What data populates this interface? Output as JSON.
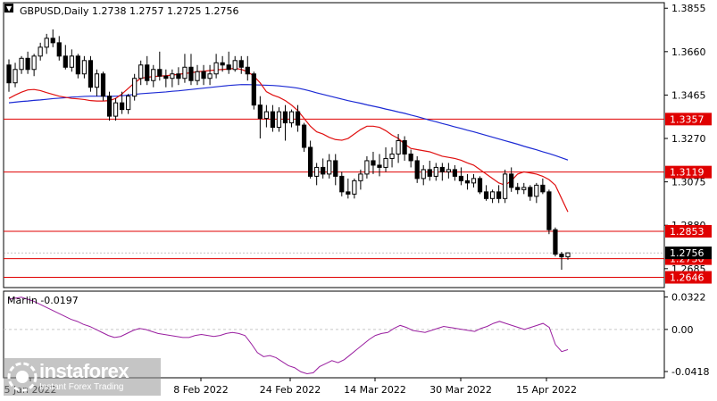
{
  "instrument_label": "GBPUSD,Daily  1.2738 1.2757 1.2725 1.2756",
  "indicator_label": "Marlin -0.0197",
  "logo": {
    "brand": "instaforex",
    "tagline": "Instant Forex Trading"
  },
  "colors": {
    "background": "#ffffff",
    "axis": "#000000",
    "grid": "#c8c8c8",
    "candle": "#000000",
    "ma_fast": "#e01010",
    "ma_slow": "#1c2ad4",
    "level": "#e00000",
    "level_label_bg": "#e00000",
    "price_label_bg": "#000000",
    "oscillator": "#9a1fa0"
  },
  "chart_data": [
    {
      "type": "candlestick",
      "title": "GBPUSD,Daily",
      "ylim": [
        1.26,
        1.388
      ],
      "y_ticks": [
        "1.3855",
        "1.3660",
        "1.3465",
        "1.3270",
        "1.3075",
        "1.2880",
        "1.2685"
      ],
      "x_ticks": [
        "5 Jan 2022",
        "8 Feb 2022",
        "24 Feb 2022",
        "14 Mar 2022",
        "30 Mar 2022",
        "15 Apr 2022"
      ],
      "hidden_tick_fragment": "5 J",
      "current_price_label": "1.2756",
      "levels": [
        {
          "value": 1.3357,
          "label": "1.3357"
        },
        {
          "value": 1.3119,
          "label": "1.3119"
        },
        {
          "value": 1.2853,
          "label": "1.2853"
        },
        {
          "value": 1.273,
          "label": "1.2730"
        },
        {
          "value": 1.2646,
          "label": "1.2646"
        }
      ],
      "candles": [
        [
          1.36,
          1.3625,
          1.348,
          1.352
        ],
        [
          1.352,
          1.361,
          1.35,
          1.358
        ],
        [
          1.358,
          1.364,
          1.356,
          1.363
        ],
        [
          1.363,
          1.366,
          1.356,
          1.358
        ],
        [
          1.358,
          1.365,
          1.355,
          1.364
        ],
        [
          1.364,
          1.37,
          1.362,
          1.368
        ],
        [
          1.368,
          1.374,
          1.365,
          1.372
        ],
        [
          1.372,
          1.376,
          1.368,
          1.37
        ],
        [
          1.37,
          1.373,
          1.362,
          1.364
        ],
        [
          1.364,
          1.369,
          1.358,
          1.359
        ],
        [
          1.359,
          1.367,
          1.357,
          1.364
        ],
        [
          1.364,
          1.365,
          1.354,
          1.356
        ],
        [
          1.356,
          1.364,
          1.354,
          1.362
        ],
        [
          1.362,
          1.364,
          1.348,
          1.35
        ],
        [
          1.35,
          1.358,
          1.346,
          1.356
        ],
        [
          1.356,
          1.357,
          1.344,
          1.346
        ],
        [
          1.346,
          1.348,
          1.335,
          1.337
        ],
        [
          1.337,
          1.345,
          1.335,
          1.343
        ],
        [
          1.343,
          1.348,
          1.338,
          1.34
        ],
        [
          1.34,
          1.347,
          1.338,
          1.346
        ],
        [
          1.346,
          1.356,
          1.344,
          1.354
        ],
        [
          1.354,
          1.362,
          1.351,
          1.36
        ],
        [
          1.36,
          1.364,
          1.351,
          1.353
        ],
        [
          1.353,
          1.36,
          1.35,
          1.358
        ],
        [
          1.358,
          1.366,
          1.353,
          1.355
        ],
        [
          1.355,
          1.358,
          1.35,
          1.354
        ],
        [
          1.354,
          1.358,
          1.35,
          1.356
        ],
        [
          1.356,
          1.359,
          1.351,
          1.354
        ],
        [
          1.354,
          1.365,
          1.352,
          1.359
        ],
        [
          1.359,
          1.365,
          1.351,
          1.353
        ],
        [
          1.353,
          1.36,
          1.351,
          1.357
        ],
        [
          1.357,
          1.36,
          1.351,
          1.354
        ],
        [
          1.354,
          1.36,
          1.351,
          1.356
        ],
        [
          1.356,
          1.365,
          1.354,
          1.361
        ],
        [
          1.361,
          1.364,
          1.357,
          1.36
        ],
        [
          1.36,
          1.366,
          1.356,
          1.358
        ],
        [
          1.358,
          1.364,
          1.357,
          1.362
        ],
        [
          1.362,
          1.364,
          1.356,
          1.359
        ],
        [
          1.359,
          1.364,
          1.353,
          1.356
        ],
        [
          1.356,
          1.357,
          1.34,
          1.342
        ],
        [
          1.342,
          1.346,
          1.327,
          1.336
        ],
        [
          1.336,
          1.342,
          1.332,
          1.339
        ],
        [
          1.339,
          1.342,
          1.33,
          1.332
        ],
        [
          1.332,
          1.341,
          1.33,
          1.339
        ],
        [
          1.339,
          1.342,
          1.326,
          1.334
        ],
        [
          1.334,
          1.34,
          1.332,
          1.339
        ],
        [
          1.339,
          1.342,
          1.33,
          1.333
        ],
        [
          1.333,
          1.334,
          1.321,
          1.323
        ],
        [
          1.323,
          1.326,
          1.309,
          1.31
        ],
        [
          1.31,
          1.316,
          1.306,
          1.314
        ],
        [
          1.314,
          1.318,
          1.309,
          1.311
        ],
        [
          1.311,
          1.32,
          1.309,
          1.317
        ],
        [
          1.317,
          1.32,
          1.306,
          1.31
        ],
        [
          1.31,
          1.312,
          1.301,
          1.303
        ],
        [
          1.303,
          1.309,
          1.3,
          1.302
        ],
        [
          1.302,
          1.309,
          1.3,
          1.308
        ],
        [
          1.308,
          1.313,
          1.304,
          1.311
        ],
        [
          1.311,
          1.319,
          1.309,
          1.317
        ],
        [
          1.317,
          1.321,
          1.311,
          1.315
        ],
        [
          1.315,
          1.32,
          1.31,
          1.314
        ],
        [
          1.314,
          1.323,
          1.312,
          1.318
        ],
        [
          1.318,
          1.323,
          1.314,
          1.32
        ],
        [
          1.32,
          1.329,
          1.316,
          1.326
        ],
        [
          1.326,
          1.328,
          1.317,
          1.32
        ],
        [
          1.32,
          1.322,
          1.314,
          1.317
        ],
        [
          1.317,
          1.319,
          1.307,
          1.309
        ],
        [
          1.309,
          1.315,
          1.306,
          1.313
        ],
        [
          1.313,
          1.317,
          1.308,
          1.31
        ],
        [
          1.31,
          1.316,
          1.308,
          1.314
        ],
        [
          1.314,
          1.316,
          1.308,
          1.312
        ],
        [
          1.312,
          1.316,
          1.309,
          1.313
        ],
        [
          1.313,
          1.315,
          1.308,
          1.31
        ],
        [
          1.31,
          1.314,
          1.306,
          1.308
        ],
        [
          1.308,
          1.311,
          1.304,
          1.307
        ],
        [
          1.307,
          1.311,
          1.305,
          1.309
        ],
        [
          1.309,
          1.31,
          1.302,
          1.303
        ],
        [
          1.303,
          1.306,
          1.299,
          1.3
        ],
        [
          1.3,
          1.304,
          1.298,
          1.303
        ],
        [
          1.303,
          1.306,
          1.298,
          1.3
        ],
        [
          1.3,
          1.313,
          1.298,
          1.311
        ],
        [
          1.311,
          1.314,
          1.303,
          1.305
        ],
        [
          1.305,
          1.307,
          1.302,
          1.304
        ],
        [
          1.304,
          1.307,
          1.302,
          1.305
        ],
        [
          1.305,
          1.306,
          1.299,
          1.301
        ],
        [
          1.301,
          1.307,
          1.298,
          1.306
        ],
        [
          1.306,
          1.309,
          1.302,
          1.303
        ],
        [
          1.303,
          1.304,
          1.284,
          1.286
        ],
        [
          1.286,
          1.287,
          1.274,
          1.275
        ],
        [
          1.275,
          1.276,
          1.268,
          1.2738
        ],
        [
          1.2738,
          1.2757,
          1.2725,
          1.2756
        ]
      ],
      "ma_fast": [
        1.345,
        1.3465,
        1.3478,
        1.3488,
        1.349,
        1.3485,
        1.3476,
        1.3468,
        1.346,
        1.3455,
        1.345,
        1.3448,
        1.3445,
        1.344,
        1.3438,
        1.3438,
        1.344,
        1.345,
        1.347,
        1.3495,
        1.352,
        1.354,
        1.3545,
        1.3548,
        1.355,
        1.3552,
        1.3555,
        1.3558,
        1.3562,
        1.3565,
        1.357,
        1.3572,
        1.3575,
        1.3578,
        1.358,
        1.3582,
        1.3585,
        1.358,
        1.357,
        1.355,
        1.352,
        1.348,
        1.3465,
        1.3455,
        1.344,
        1.342,
        1.3395,
        1.336,
        1.3325,
        1.33,
        1.329,
        1.3275,
        1.3265,
        1.3262,
        1.327,
        1.329,
        1.331,
        1.3325,
        1.3325,
        1.332,
        1.3305,
        1.3285,
        1.327,
        1.3245,
        1.3225,
        1.322,
        1.3215,
        1.321,
        1.32,
        1.319,
        1.3185,
        1.318,
        1.3172,
        1.316,
        1.315,
        1.313,
        1.311,
        1.309,
        1.307,
        1.306,
        1.308,
        1.311,
        1.312,
        1.3115,
        1.311,
        1.31,
        1.3085,
        1.306,
        1.3,
        1.294
      ],
      "ma_slow": [
        1.343,
        1.3433,
        1.3436,
        1.3438,
        1.3441,
        1.3443,
        1.3446,
        1.3449,
        1.3451,
        1.3453,
        1.3456,
        1.3457,
        1.3459,
        1.346,
        1.346,
        1.346,
        1.3459,
        1.346,
        1.3462,
        1.3465,
        1.3468,
        1.3471,
        1.3473,
        1.3475,
        1.3477,
        1.3479,
        1.3482,
        1.3484,
        1.3487,
        1.349,
        1.3493,
        1.3496,
        1.3499,
        1.3502,
        1.3505,
        1.3508,
        1.351,
        1.3512,
        1.3512,
        1.3511,
        1.351,
        1.3509,
        1.3508,
        1.3506,
        1.3503,
        1.35,
        1.3496,
        1.349,
        1.3483,
        1.3475,
        1.3468,
        1.3461,
        1.3454,
        1.3447,
        1.344,
        1.3434,
        1.3428,
        1.3421,
        1.3415,
        1.3409,
        1.3402,
        1.3396,
        1.3389,
        1.3383,
        1.3375,
        1.3368,
        1.336,
        1.3352,
        1.3345,
        1.3337,
        1.333,
        1.3322,
        1.3315,
        1.3307,
        1.33,
        1.3292,
        1.3284,
        1.3276,
        1.3268,
        1.326,
        1.3252,
        1.3244,
        1.3235,
        1.3227,
        1.3219,
        1.321,
        1.3202,
        1.3193,
        1.3183,
        1.3173
      ]
    },
    {
      "type": "line",
      "title": "Marlin",
      "ylim": [
        -0.048,
        0.038
      ],
      "y_ticks": [
        "0.0322",
        "0.00",
        "-0.0418"
      ],
      "values": [
        0.03,
        0.031,
        0.032,
        0.03,
        0.028,
        0.025,
        0.022,
        0.019,
        0.016,
        0.013,
        0.01,
        0.008,
        0.005,
        0.003,
        0.0,
        -0.003,
        -0.006,
        -0.008,
        -0.007,
        -0.004,
        -0.001,
        0.001,
        0.0,
        -0.002,
        -0.004,
        -0.005,
        -0.006,
        -0.007,
        -0.008,
        -0.008,
        -0.006,
        -0.005,
        -0.006,
        -0.007,
        -0.006,
        -0.004,
        -0.003,
        -0.004,
        -0.006,
        -0.014,
        -0.023,
        -0.027,
        -0.026,
        -0.028,
        -0.032,
        -0.036,
        -0.038,
        -0.042,
        -0.044,
        -0.043,
        -0.037,
        -0.034,
        -0.031,
        -0.033,
        -0.03,
        -0.025,
        -0.02,
        -0.015,
        -0.01,
        -0.006,
        -0.004,
        -0.003,
        0.001,
        0.004,
        0.002,
        -0.001,
        -0.002,
        -0.003,
        -0.001,
        0.001,
        0.003,
        0.002,
        0.001,
        0.0,
        -0.001,
        -0.002,
        0.001,
        0.003,
        0.006,
        0.008,
        0.006,
        0.004,
        0.002,
        0.0,
        0.002,
        0.004,
        0.006,
        0.002,
        -0.015,
        -0.022,
        -0.02
      ]
    }
  ]
}
